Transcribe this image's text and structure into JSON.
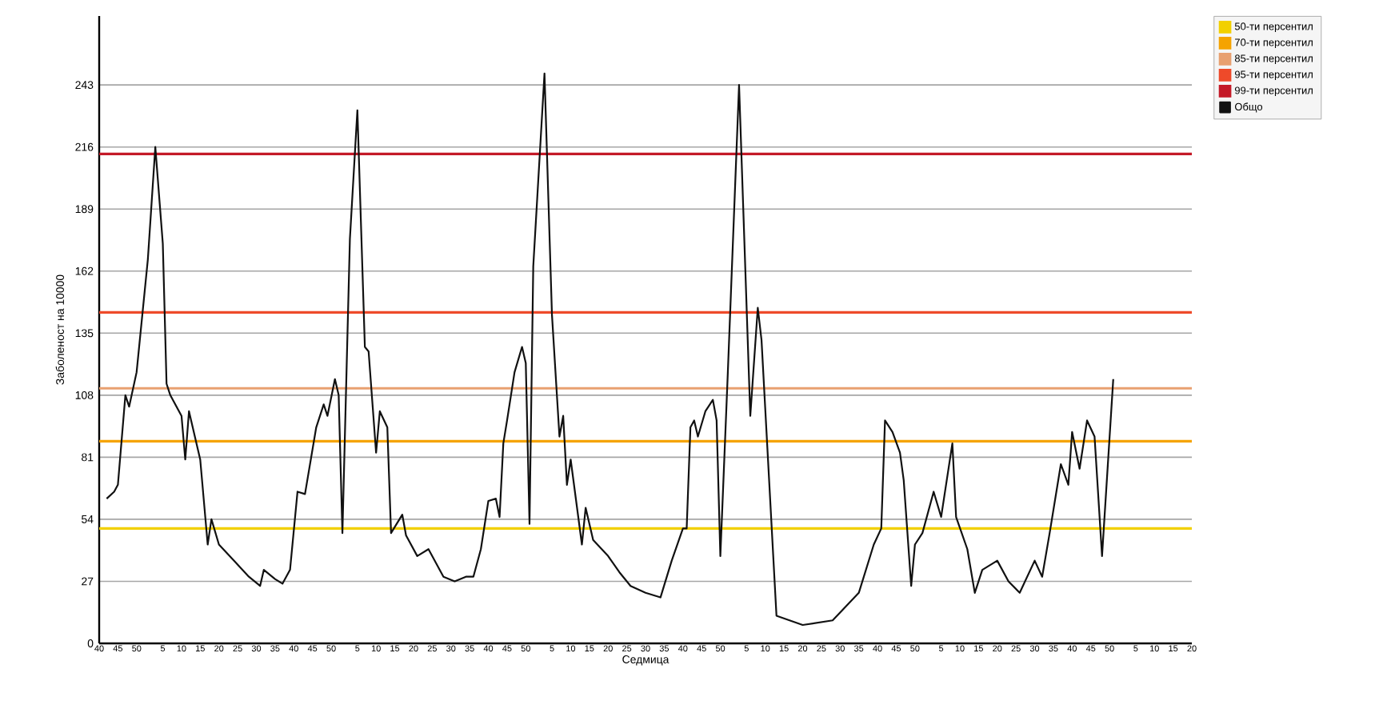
{
  "chart_data": {
    "type": "line",
    "xlabel": "Седмица",
    "ylabel": "Заболеност на 10000",
    "categories": [
      "40",
      null,
      null,
      null,
      null,
      "45",
      null,
      null,
      null,
      null,
      "50",
      null,
      null,
      null,
      null,
      null,
      null,
      "5",
      null,
      null,
      null,
      null,
      "10",
      null,
      null,
      null,
      null,
      "15",
      null,
      null,
      null,
      null,
      "20",
      null,
      null,
      null,
      null,
      "25",
      null,
      null,
      null,
      null,
      "30",
      null,
      null,
      null,
      null,
      "35",
      null,
      null,
      null,
      null,
      "40",
      null,
      null,
      null,
      null,
      "45",
      null,
      null,
      null,
      null,
      "50",
      null,
      null,
      null,
      null,
      null,
      null,
      "5",
      null,
      null,
      null,
      null,
      "10",
      null,
      null,
      null,
      null,
      "15",
      null,
      null,
      null,
      null,
      "20",
      null,
      null,
      null,
      null,
      "25",
      null,
      null,
      null,
      null,
      "30",
      null,
      null,
      null,
      null,
      "35",
      null,
      null,
      null,
      null,
      "40",
      null,
      null,
      null,
      null,
      "45",
      null,
      null,
      null,
      null,
      "50",
      null,
      null,
      null,
      null,
      null,
      null,
      "5",
      null,
      null,
      null,
      null,
      "10",
      null,
      null,
      null,
      null,
      "15",
      null,
      null,
      null,
      null,
      "20",
      null,
      null,
      null,
      null,
      "25",
      null,
      null,
      null,
      null,
      "30",
      null,
      null,
      null,
      null,
      "35",
      null,
      null,
      null,
      null,
      "40",
      null,
      null,
      null,
      null,
      "45",
      null,
      null,
      null,
      null,
      "50",
      null,
      null,
      null,
      null,
      null,
      null,
      "5",
      null,
      null,
      null,
      null,
      "10",
      null,
      null,
      null,
      null,
      "15",
      null,
      null,
      null,
      null,
      "20",
      null,
      null,
      null,
      null,
      "25",
      null,
      null,
      null,
      null,
      "30",
      null,
      null,
      null,
      null,
      "35",
      null,
      null,
      null,
      null,
      "40",
      null,
      null,
      null,
      null,
      "45",
      null,
      null,
      null,
      null,
      "50",
      null,
      null,
      null,
      null,
      null,
      null,
      "5",
      null,
      null,
      null,
      null,
      "10",
      null,
      null,
      null,
      null,
      "15",
      null,
      null,
      null,
      null,
      "20",
      null,
      null,
      null,
      null,
      "25",
      null,
      null,
      null,
      null,
      "30",
      null,
      null,
      null,
      null,
      "35",
      null,
      null,
      null,
      null,
      "40",
      null,
      null,
      null,
      null,
      "45",
      null,
      null,
      null,
      null,
      "50",
      null,
      null,
      null,
      null,
      null,
      null,
      "5",
      null,
      null,
      null,
      null,
      "10",
      null,
      null,
      null,
      null,
      "15",
      null,
      null,
      null,
      null,
      "20"
    ],
    "series": [
      {
        "name": "Общо",
        "color": "#111111",
        "values": [
          null,
          null,
          63,
          null,
          66,
          69,
          null,
          108,
          103,
          null,
          118,
          null,
          null,
          167,
          null,
          216,
          null,
          174,
          113,
          108,
          null,
          null,
          99,
          80,
          101,
          null,
          null,
          80,
          null,
          43,
          54,
          null,
          43,
          null,
          null,
          null,
          36,
          null,
          null,
          null,
          29,
          null,
          null,
          25,
          32,
          null,
          null,
          28,
          null,
          26,
          null,
          32,
          null,
          66,
          null,
          65,
          null,
          null,
          94,
          null,
          104,
          99,
          null,
          115,
          108,
          48,
          null,
          176,
          null,
          232,
          null,
          129,
          127,
          null,
          83,
          101,
          null,
          94,
          48,
          null,
          null,
          56,
          47,
          null,
          null,
          38,
          null,
          null,
          41,
          null,
          null,
          null,
          29,
          null,
          null,
          27,
          null,
          null,
          29,
          null,
          29,
          null,
          41,
          null,
          62,
          null,
          63,
          55,
          87,
          97,
          null,
          118,
          null,
          129,
          122,
          52,
          164,
          null,
          null,
          248,
          null,
          143,
          null,
          90,
          99,
          69,
          80,
          null,
          null,
          43,
          59,
          null,
          45,
          null,
          null,
          null,
          38,
          null,
          null,
          31,
          null,
          null,
          25,
          null,
          null,
          null,
          22,
          null,
          null,
          null,
          20,
          null,
          null,
          36,
          null,
          null,
          50,
          50,
          94,
          97,
          90,
          null,
          101,
          null,
          106,
          97,
          38,
          null,
          118,
          null,
          null,
          243,
          null,
          null,
          99,
          null,
          146,
          132,
          null,
          null,
          null,
          12,
          null,
          null,
          null,
          null,
          null,
          null,
          8,
          null,
          null,
          null,
          null,
          null,
          null,
          null,
          10,
          null,
          null,
          null,
          null,
          null,
          null,
          22,
          null,
          null,
          null,
          43,
          null,
          50,
          97,
          null,
          92,
          null,
          83,
          71,
          null,
          25,
          43,
          null,
          48,
          null,
          null,
          66,
          null,
          55,
          null,
          null,
          87,
          55,
          null,
          null,
          41,
          null,
          22,
          null,
          32,
          null,
          null,
          null,
          36,
          null,
          null,
          27,
          null,
          null,
          22,
          null,
          null,
          null,
          36,
          null,
          29,
          null,
          48,
          null,
          null,
          78,
          null,
          69,
          92,
          null,
          76,
          null,
          97,
          null,
          90,
          null,
          38,
          null,
          null,
          115,
          null,
          null,
          null,
          null,
          null,
          null,
          null,
          null,
          null,
          null,
          null,
          null,
          null,
          null,
          null,
          null,
          null,
          null,
          null,
          null,
          null
        ]
      }
    ],
    "ref_lines": [
      {
        "axis": "y",
        "value": 50,
        "label": "50-ти персентил",
        "color": "#f2d000"
      },
      {
        "axis": "y",
        "value": 88,
        "label": "70-ти персентил",
        "color": "#f5a300"
      },
      {
        "axis": "y",
        "value": 111,
        "label": "85-ти персентил",
        "color": "#e8a070"
      },
      {
        "axis": "y",
        "value": 144,
        "label": "95-ти персентил",
        "color": "#ee4a2a"
      },
      {
        "axis": "y",
        "value": 213,
        "label": "99-ти персентил",
        "color": "#c41a28"
      }
    ],
    "ylim": [
      0,
      273
    ],
    "yticks": [
      0,
      27,
      54,
      81,
      108,
      135,
      162,
      189,
      216,
      243
    ],
    "grid": "y",
    "legend": "top right",
    "marker": "none",
    "line_style": "solid"
  }
}
